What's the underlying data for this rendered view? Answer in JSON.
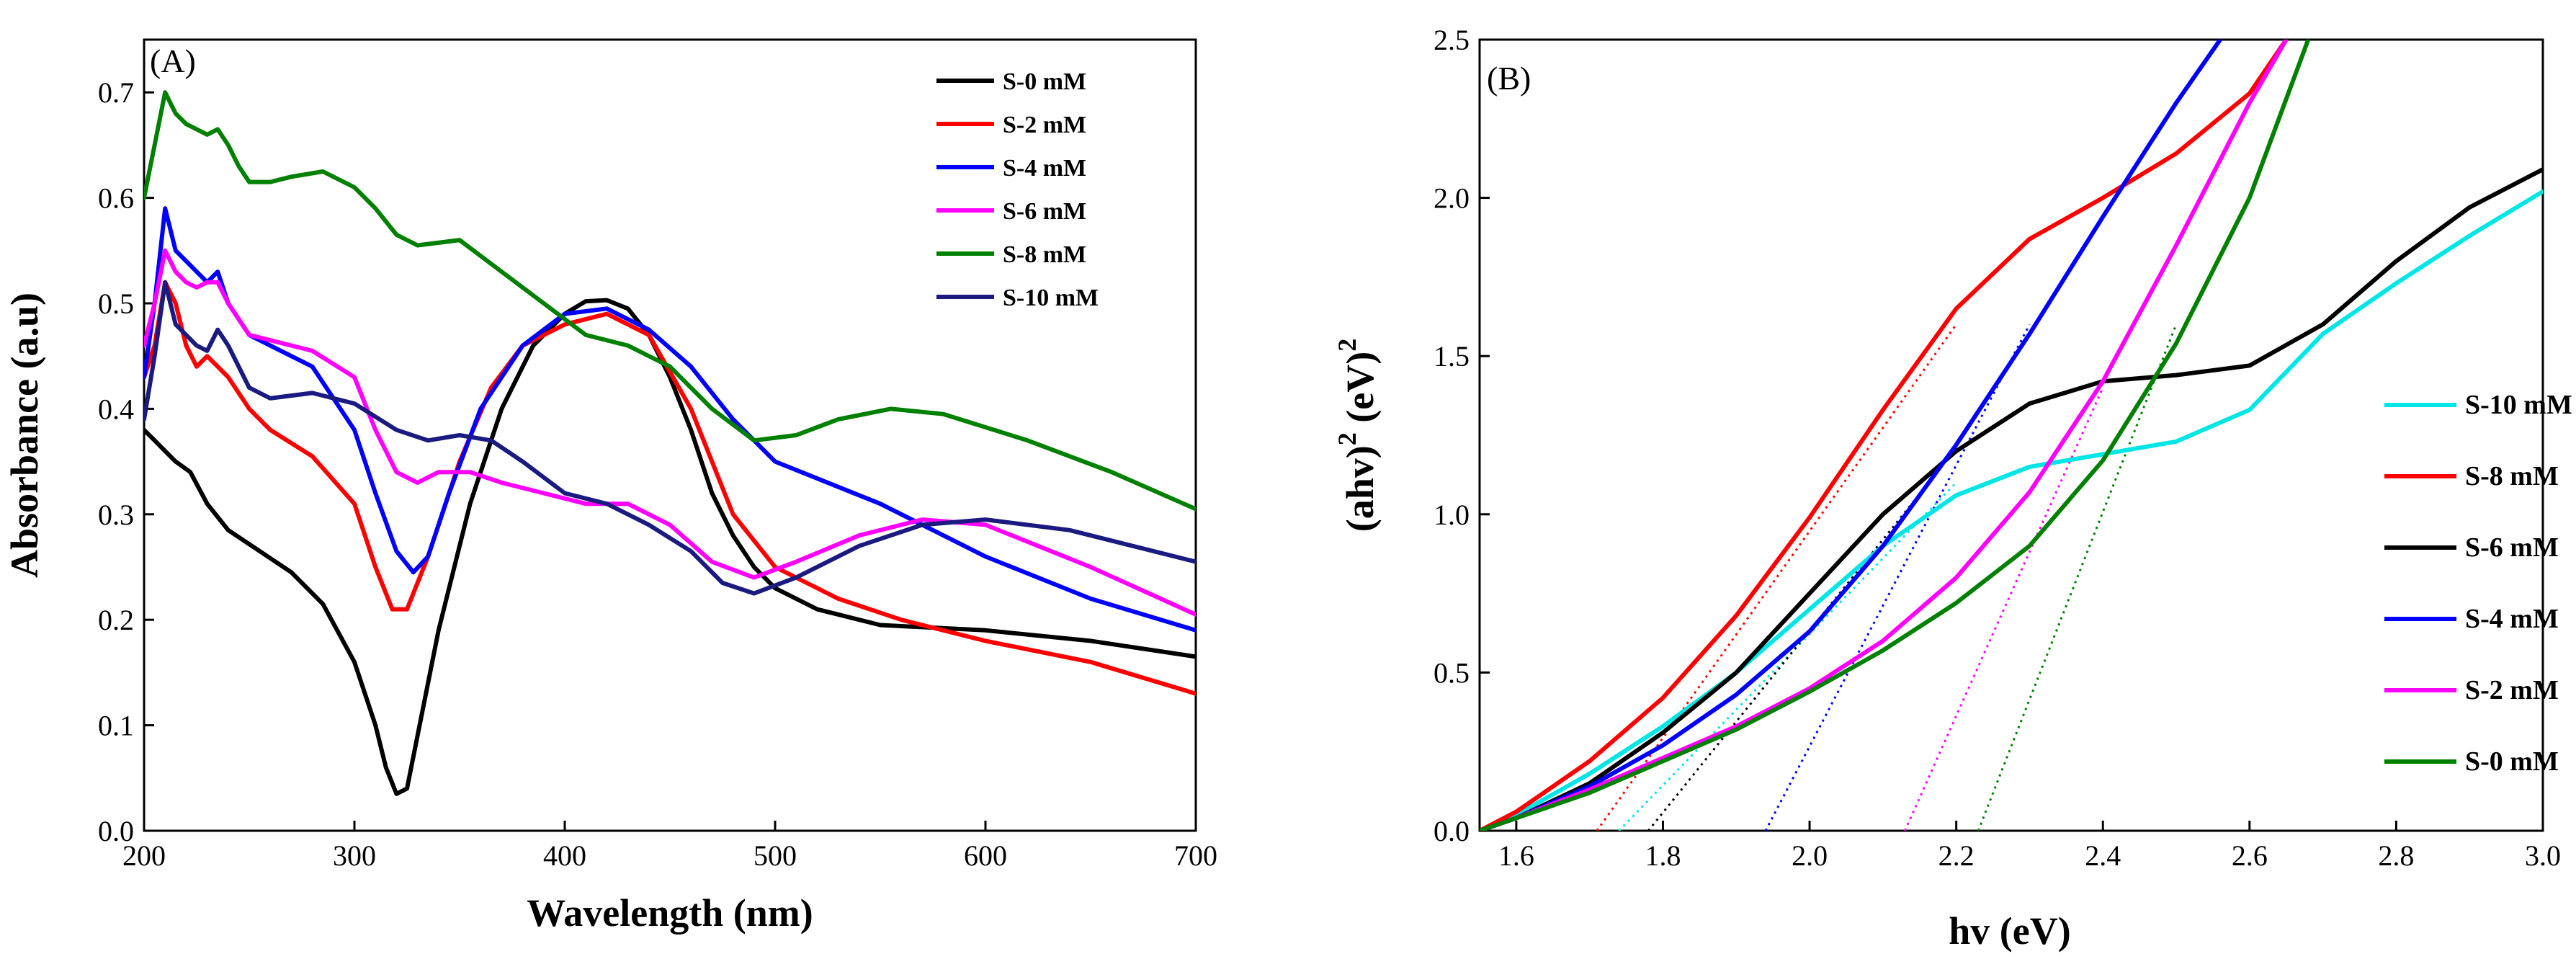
{
  "chart_data": [
    {
      "type": "line",
      "panel_label": "(A)",
      "xlabel": "Wavelength (nm)",
      "ylabel": "Absorbance (a.u)",
      "xlim": [
        200,
        700
      ],
      "ylim": [
        0.0,
        0.75
      ],
      "xticks": [
        200,
        300,
        400,
        500,
        600,
        700
      ],
      "yticks": [
        0.0,
        0.1,
        0.2,
        0.3,
        0.4,
        0.5,
        0.6,
        0.7
      ],
      "ytick_labels": [
        "0.0",
        "0.1",
        "0.2",
        "0.3",
        "0.4",
        "0.5",
        "0.6",
        "0.7"
      ],
      "legend_position": "top-right",
      "series": [
        {
          "name": "S-0 mM",
          "color": "#000000",
          "x": [
            200,
            205,
            210,
            215,
            222,
            230,
            240,
            255,
            270,
            285,
            300,
            310,
            315,
            320,
            325,
            330,
            340,
            355,
            370,
            385,
            400,
            410,
            420,
            430,
            440,
            450,
            460,
            470,
            480,
            490,
            500,
            520,
            550,
            600,
            650,
            700
          ],
          "y": [
            0.38,
            0.37,
            0.36,
            0.35,
            0.34,
            0.31,
            0.285,
            0.265,
            0.245,
            0.215,
            0.16,
            0.1,
            0.06,
            0.035,
            0.04,
            0.09,
            0.19,
            0.31,
            0.4,
            0.46,
            0.49,
            0.502,
            0.503,
            0.495,
            0.47,
            0.43,
            0.38,
            0.32,
            0.28,
            0.25,
            0.23,
            0.21,
            0.195,
            0.19,
            0.18,
            0.165
          ]
        },
        {
          "name": "S-2 mM",
          "color": "#ff0000",
          "x": [
            200,
            205,
            210,
            215,
            220,
            225,
            230,
            235,
            240,
            250,
            260,
            280,
            300,
            310,
            318,
            325,
            335,
            350,
            365,
            380,
            400,
            420,
            440,
            460,
            480,
            500,
            530,
            560,
            600,
            650,
            700
          ],
          "y": [
            0.43,
            0.46,
            0.52,
            0.5,
            0.46,
            0.44,
            0.45,
            0.44,
            0.43,
            0.4,
            0.38,
            0.355,
            0.31,
            0.25,
            0.21,
            0.21,
            0.26,
            0.35,
            0.42,
            0.46,
            0.48,
            0.49,
            0.47,
            0.4,
            0.3,
            0.25,
            0.22,
            0.2,
            0.18,
            0.16,
            0.13
          ]
        },
        {
          "name": "S-4 mM",
          "color": "#0000ff",
          "x": [
            200,
            205,
            210,
            215,
            220,
            225,
            230,
            235,
            240,
            250,
            260,
            280,
            300,
            310,
            320,
            328,
            335,
            345,
            360,
            380,
            400,
            420,
            440,
            460,
            480,
            500,
            550,
            600,
            650,
            700
          ],
          "y": [
            0.43,
            0.5,
            0.59,
            0.55,
            0.54,
            0.53,
            0.52,
            0.53,
            0.5,
            0.47,
            0.46,
            0.44,
            0.38,
            0.32,
            0.265,
            0.245,
            0.26,
            0.32,
            0.4,
            0.46,
            0.49,
            0.495,
            0.475,
            0.44,
            0.39,
            0.35,
            0.31,
            0.26,
            0.22,
            0.19
          ]
        },
        {
          "name": "S-6 mM",
          "color": "#ff00ff",
          "x": [
            200,
            205,
            210,
            215,
            220,
            225,
            230,
            235,
            240,
            250,
            260,
            280,
            300,
            310,
            320,
            330,
            340,
            355,
            370,
            390,
            410,
            430,
            450,
            470,
            490,
            510,
            540,
            570,
            600,
            650,
            700
          ],
          "y": [
            0.46,
            0.5,
            0.55,
            0.53,
            0.52,
            0.515,
            0.52,
            0.52,
            0.5,
            0.47,
            0.465,
            0.455,
            0.43,
            0.38,
            0.34,
            0.33,
            0.34,
            0.34,
            0.33,
            0.32,
            0.31,
            0.31,
            0.29,
            0.255,
            0.24,
            0.255,
            0.28,
            0.295,
            0.29,
            0.25,
            0.205
          ]
        },
        {
          "name": "S-8 mM",
          "color": "#008000",
          "x": [
            200,
            205,
            210,
            215,
            220,
            225,
            230,
            235,
            240,
            245,
            250,
            260,
            270,
            285,
            300,
            310,
            320,
            330,
            350,
            370,
            390,
            410,
            430,
            450,
            470,
            490,
            510,
            530,
            555,
            580,
            620,
            660,
            700
          ],
          "y": [
            0.6,
            0.65,
            0.7,
            0.68,
            0.67,
            0.665,
            0.66,
            0.665,
            0.65,
            0.63,
            0.615,
            0.615,
            0.62,
            0.625,
            0.61,
            0.59,
            0.565,
            0.555,
            0.56,
            0.53,
            0.5,
            0.47,
            0.46,
            0.44,
            0.4,
            0.37,
            0.375,
            0.39,
            0.4,
            0.395,
            0.37,
            0.34,
            0.305
          ]
        },
        {
          "name": "S-10 mM",
          "color": "#1a1a80",
          "x": [
            200,
            205,
            210,
            215,
            220,
            225,
            230,
            235,
            240,
            250,
            260,
            280,
            300,
            320,
            335,
            350,
            365,
            380,
            400,
            420,
            440,
            460,
            475,
            490,
            510,
            540,
            570,
            600,
            640,
            700
          ],
          "y": [
            0.39,
            0.45,
            0.52,
            0.48,
            0.47,
            0.46,
            0.455,
            0.475,
            0.46,
            0.42,
            0.41,
            0.415,
            0.405,
            0.38,
            0.37,
            0.375,
            0.37,
            0.35,
            0.32,
            0.31,
            0.29,
            0.265,
            0.235,
            0.225,
            0.24,
            0.27,
            0.29,
            0.295,
            0.285,
            0.255
          ]
        }
      ]
    },
    {
      "type": "line",
      "panel_label": "(B)",
      "xlabel": "hv (eV)",
      "ylabel_base": "(ahv)",
      "ylabel_sup1": "2",
      "ylabel_mid": " (eV)",
      "ylabel_sup2": "2",
      "xlim": [
        1.55,
        3.0
      ],
      "ylim": [
        0.0,
        2.5
      ],
      "xticks": [
        1.6,
        1.8,
        2.0,
        2.2,
        2.4,
        2.6,
        2.8,
        3.0
      ],
      "xtick_labels": [
        "1.6",
        "1.8",
        "2.0",
        "2.2",
        "2.4",
        "2.6",
        "2.8",
        "3.0"
      ],
      "yticks": [
        0.0,
        0.5,
        1.0,
        1.5,
        2.0,
        2.5
      ],
      "ytick_labels": [
        "0.0",
        "0.5",
        "1.0",
        "1.5",
        "2.0",
        "2.5"
      ],
      "legend_position": "right",
      "series": [
        {
          "name": "S-10 mM",
          "color": "#00e5e5",
          "x": [
            1.55,
            1.6,
            1.7,
            1.8,
            1.9,
            2.0,
            2.1,
            2.2,
            2.3,
            2.4,
            2.5,
            2.6,
            2.65,
            2.7,
            2.8,
            2.9,
            3.0
          ],
          "y": [
            0.0,
            0.05,
            0.18,
            0.33,
            0.5,
            0.7,
            0.9,
            1.06,
            1.15,
            1.19,
            1.23,
            1.33,
            1.45,
            1.57,
            1.73,
            1.88,
            2.02
          ]
        },
        {
          "name": "S-8 mM",
          "color": "#ff0000",
          "x": [
            1.55,
            1.6,
            1.7,
            1.8,
            1.9,
            2.0,
            2.1,
            2.2,
            2.3,
            2.4,
            2.5,
            2.6,
            2.65
          ],
          "y": [
            0.0,
            0.06,
            0.22,
            0.42,
            0.68,
            0.99,
            1.33,
            1.65,
            1.87,
            2.0,
            2.14,
            2.33,
            2.5
          ]
        },
        {
          "name": "S-6 mM",
          "color": "#000000",
          "x": [
            1.55,
            1.6,
            1.7,
            1.8,
            1.9,
            2.0,
            2.1,
            2.2,
            2.3,
            2.4,
            2.5,
            2.6,
            2.7,
            2.8,
            2.9,
            3.0
          ],
          "y": [
            0.0,
            0.04,
            0.15,
            0.31,
            0.5,
            0.75,
            1.0,
            1.2,
            1.35,
            1.42,
            1.44,
            1.47,
            1.6,
            1.8,
            1.97,
            2.09
          ]
        },
        {
          "name": "S-4 mM",
          "color": "#0000ff",
          "x": [
            1.55,
            1.6,
            1.7,
            1.8,
            1.9,
            2.0,
            2.1,
            2.2,
            2.3,
            2.4,
            2.5,
            2.56
          ],
          "y": [
            0.0,
            0.04,
            0.14,
            0.27,
            0.43,
            0.63,
            0.9,
            1.22,
            1.57,
            1.94,
            2.3,
            2.5
          ]
        },
        {
          "name": "S-2 mM",
          "color": "#ff00ff",
          "x": [
            1.55,
            1.6,
            1.7,
            1.8,
            1.9,
            2.0,
            2.1,
            2.2,
            2.3,
            2.4,
            2.5,
            2.6,
            2.65
          ],
          "y": [
            0.0,
            0.04,
            0.13,
            0.23,
            0.33,
            0.45,
            0.6,
            0.8,
            1.07,
            1.42,
            1.85,
            2.3,
            2.5
          ]
        },
        {
          "name": "S-0 mM",
          "color": "#008000",
          "x": [
            1.55,
            1.6,
            1.7,
            1.8,
            1.9,
            2.0,
            2.1,
            2.2,
            2.3,
            2.4,
            2.5,
            2.6,
            2.68
          ],
          "y": [
            0.0,
            0.04,
            0.12,
            0.22,
            0.32,
            0.44,
            0.57,
            0.72,
            0.9,
            1.17,
            1.54,
            2.0,
            2.5
          ]
        }
      ],
      "tangent_lines": [
        {
          "name": "S-8 mM",
          "color": "#ff0000",
          "x": [
            1.71,
            2.2
          ],
          "y": [
            0.0,
            1.6
          ]
        },
        {
          "name": "S-10 mM",
          "color": "#00e5e5",
          "x": [
            1.74,
            2.2
          ],
          "y": [
            0.0,
            1.1
          ]
        },
        {
          "name": "S-6 mM",
          "color": "#000000",
          "x": [
            1.78,
            2.18
          ],
          "y": [
            0.0,
            1.15
          ]
        },
        {
          "name": "S-4 mM",
          "color": "#0000ff",
          "x": [
            1.94,
            2.3
          ],
          "y": [
            0.0,
            1.6
          ]
        },
        {
          "name": "S-2 mM",
          "color": "#ff00ff",
          "x": [
            2.13,
            2.4
          ],
          "y": [
            0.0,
            1.4
          ]
        },
        {
          "name": "S-0 mM",
          "color": "#008000",
          "x": [
            2.23,
            2.5
          ],
          "y": [
            0.0,
            1.6
          ]
        }
      ]
    }
  ]
}
